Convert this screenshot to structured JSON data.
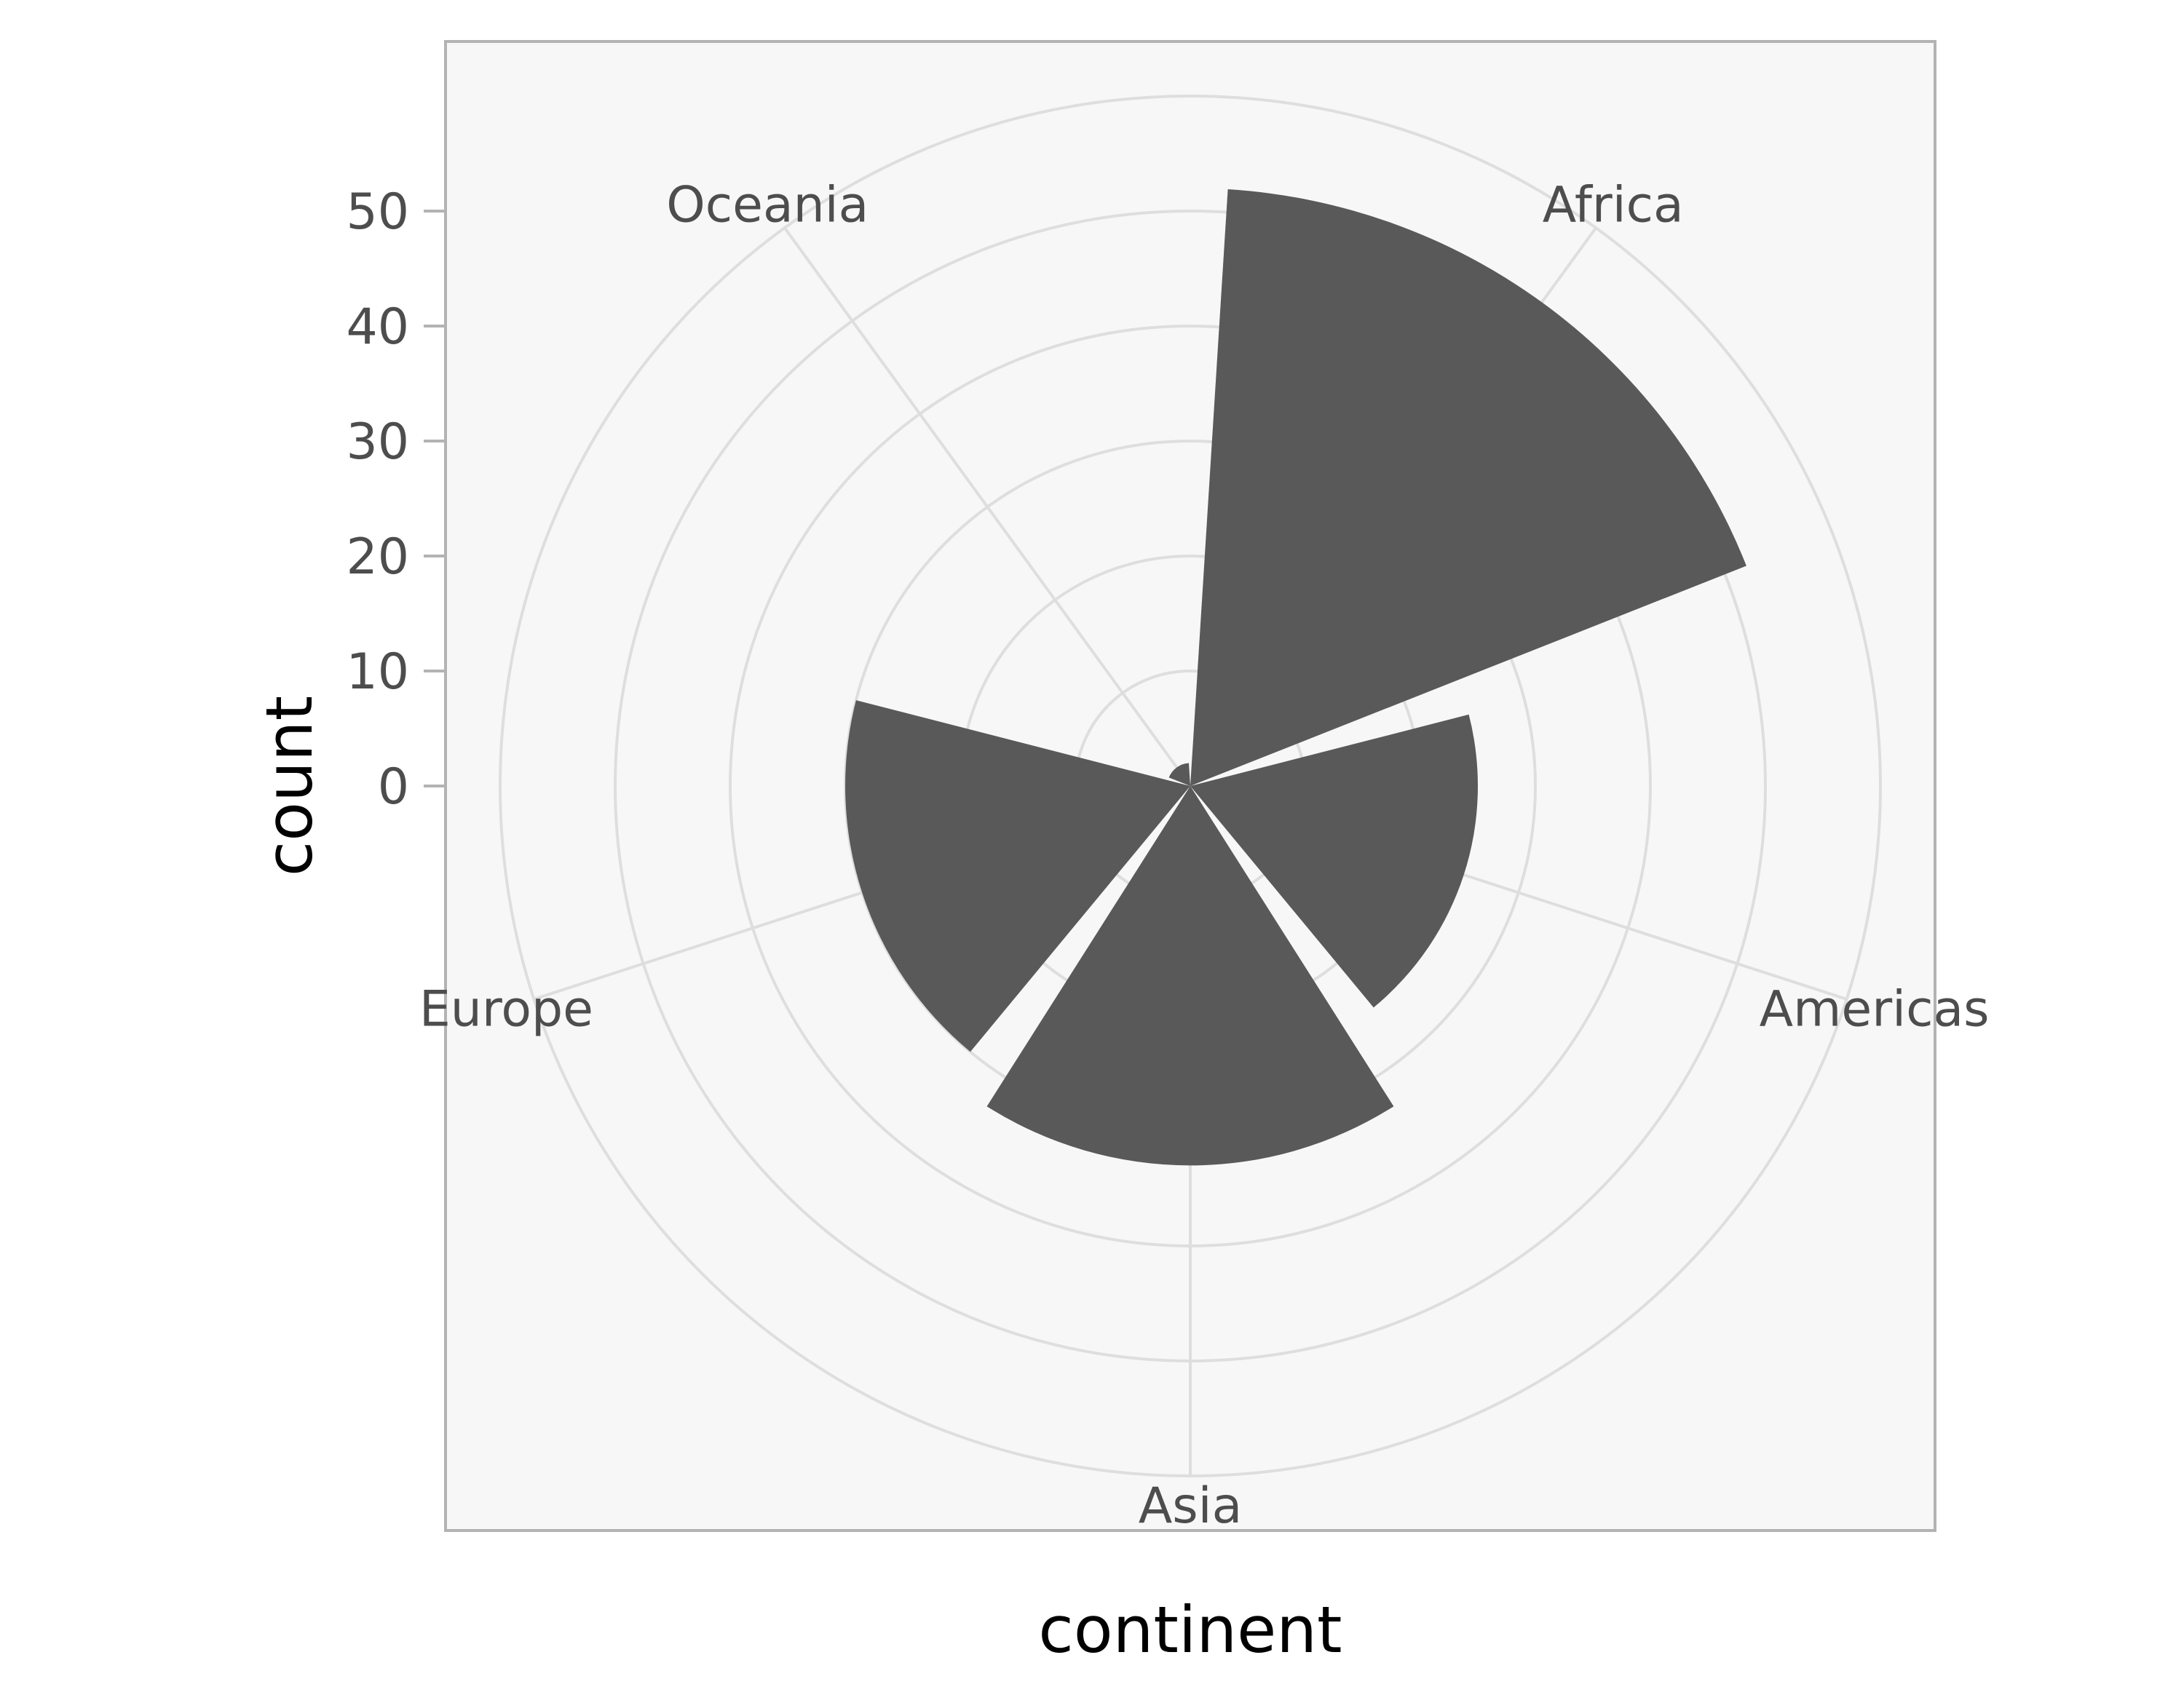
{
  "chart_data": {
    "type": "bar",
    "coord": "polar",
    "categories": [
      "Africa",
      "Americas",
      "Asia",
      "Europe",
      "Oceania"
    ],
    "values": [
      52,
      25,
      33,
      30,
      2
    ],
    "xlabel": "continent",
    "ylabel": "count",
    "yticks": [
      0,
      10,
      20,
      30,
      40,
      50
    ],
    "ylim": [
      0,
      60
    ],
    "grid": true,
    "legend": "none",
    "colors": {
      "bar": "#595959",
      "panel": "#f7f7f7",
      "grid": "#dedede",
      "border": "#b3b3b3",
      "text": "#4d4d4d"
    }
  }
}
